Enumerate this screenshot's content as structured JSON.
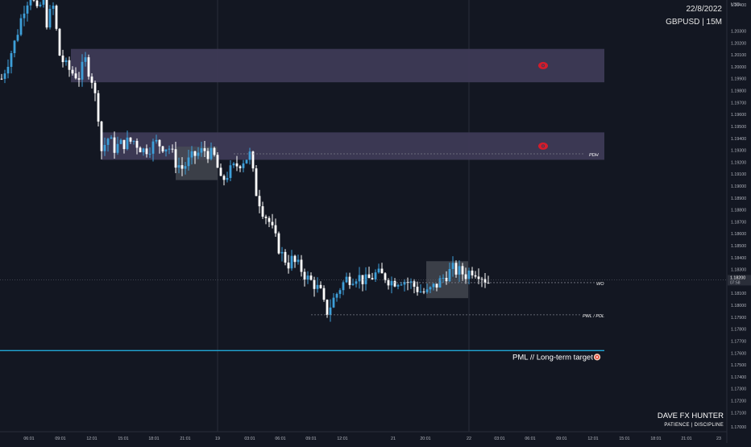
{
  "header": {
    "date": "22/8/2022",
    "symbol": "GBPUSD | 15M",
    "currency": "USD"
  },
  "watermark": {
    "name": "DAVE FX HUNTER",
    "tagline": "PATIENCE | DISCIPLINE"
  },
  "chart_data": {
    "type": "candlestick",
    "symbol": "GBPUSD",
    "timeframe": "15M",
    "ylim": [
      1.1694,
      1.2056
    ],
    "y_ticks": [
      "1.20400",
      "1.20300",
      "1.20200",
      "1.20100",
      "1.20000",
      "1.19900",
      "1.19800",
      "1.19700",
      "1.19600",
      "1.19500",
      "1.19400",
      "1.19300",
      "1.19200",
      "1.19100",
      "1.19000",
      "1.18900",
      "1.18800",
      "1.18700",
      "1.18600",
      "1.18500",
      "1.18400",
      "1.18300",
      "1.18100",
      "1.18000",
      "1.17900",
      "1.17800",
      "1.17700",
      "1.17600",
      "1.17500",
      "1.17400",
      "1.17300",
      "1.17200",
      "1.17100",
      "1.17000"
    ],
    "x_ticks": [
      "06:01",
      "09:01",
      "12:01",
      "15:01",
      "18:01",
      "21:01",
      "19",
      "03:01",
      "06:01",
      "09:01",
      "12:01",
      "21",
      "20:01",
      "22",
      "03:01",
      "06:01",
      "09:01",
      "12:01",
      "15:01",
      "18:01",
      "21:01",
      "23"
    ],
    "current_price": "1.18200",
    "countdown": "07:58",
    "zones": [
      {
        "label": "supply-zone-upper",
        "top": 1.2015,
        "bottom": 1.1987,
        "icon": "eye"
      },
      {
        "label": "supply-zone-lower",
        "top": 1.1945,
        "bottom": 1.1922,
        "icon": "eye"
      },
      {
        "label": "consolidation-box-1",
        "top": 1.1933,
        "bottom": 1.1905
      },
      {
        "label": "consolidation-box-2",
        "top": 1.1837,
        "bottom": 1.1806
      }
    ],
    "levels": [
      {
        "label": "PDH",
        "price": 1.1927,
        "style": "dashed"
      },
      {
        "label": "WO",
        "price": 1.1819,
        "style": "dashed"
      },
      {
        "label": "PWL / PDL",
        "price": 1.1792,
        "style": "dashed"
      },
      {
        "label": "PML // Long-term target",
        "price": 1.1762,
        "style": "solid",
        "color": "#22a7d6",
        "icon": "target"
      }
    ],
    "path": [
      [
        0,
        1.199
      ],
      [
        4,
        1.202
      ],
      [
        7,
        1.205
      ],
      [
        9,
        1.2062
      ],
      [
        11,
        1.2045
      ],
      [
        13,
        1.2058
      ],
      [
        14,
        1.2038
      ],
      [
        16,
        1.205
      ],
      [
        18,
        1.201
      ],
      [
        20,
        1.2
      ],
      [
        22,
        1.1995
      ],
      [
        24,
        1.1992
      ],
      [
        26,
        1.2005
      ],
      [
        28,
        1.199
      ],
      [
        30,
        1.196
      ],
      [
        31,
        1.193
      ],
      [
        33,
        1.194
      ],
      [
        35,
        1.1932
      ],
      [
        38,
        1.1936
      ],
      [
        41,
        1.1938
      ],
      [
        44,
        1.193
      ],
      [
        48,
        1.1936
      ],
      [
        52,
        1.1932
      ],
      [
        54,
        1.192
      ],
      [
        56,
        1.1915
      ],
      [
        60,
        1.1926
      ],
      [
        63,
        1.193
      ],
      [
        66,
        1.1924
      ],
      [
        67,
        1.1915
      ],
      [
        68,
        1.1903
      ],
      [
        70,
        1.191
      ],
      [
        74,
        1.192
      ],
      [
        77,
        1.1926
      ],
      [
        78,
        1.191
      ],
      [
        79,
        1.1895
      ],
      [
        81,
        1.188
      ],
      [
        83,
        1.187
      ],
      [
        85,
        1.1855
      ],
      [
        87,
        1.1842
      ],
      [
        89,
        1.1835
      ],
      [
        90,
        1.1838
      ],
      [
        93,
        1.183
      ],
      [
        95,
        1.1822
      ],
      [
        97,
        1.1818
      ],
      [
        99,
        1.181
      ],
      [
        100,
        1.18
      ],
      [
        101,
        1.1795
      ],
      [
        103,
        1.1805
      ],
      [
        105,
        1.1815
      ],
      [
        107,
        1.1822
      ],
      [
        110,
        1.1825
      ],
      [
        113,
        1.182
      ],
      [
        116,
        1.1826
      ],
      [
        119,
        1.1824
      ],
      [
        121,
        1.182
      ],
      [
        124,
        1.1822
      ],
      [
        127,
        1.1818
      ],
      [
        130,
        1.1812
      ],
      [
        132,
        1.181
      ],
      [
        134,
        1.1815
      ],
      [
        136,
        1.182
      ],
      [
        138,
        1.1826
      ],
      [
        140,
        1.183
      ],
      [
        142,
        1.1828
      ],
      [
        144,
        1.1826
      ],
      [
        146,
        1.183
      ],
      [
        148,
        1.1828
      ],
      [
        150,
        1.1822
      ],
      [
        151,
        1.182
      ]
    ]
  }
}
